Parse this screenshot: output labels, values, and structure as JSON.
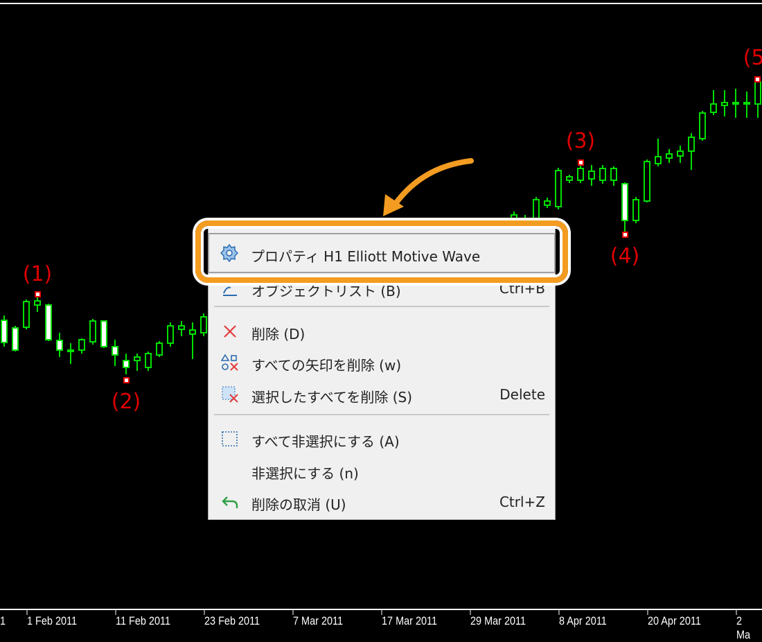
{
  "colors": {
    "candle_outline": "#00e000",
    "candle_body": "#ffffff",
    "wave_marker": "#e00000",
    "highlight": "#f39c21"
  },
  "candles": [
    {
      "o": 538,
      "c": 506,
      "h": 545,
      "l": 500
    },
    {
      "o": 527,
      "c": 495,
      "h": 530,
      "l": 493
    },
    {
      "o": 528,
      "c": 565,
      "h": 568,
      "l": 525
    },
    {
      "o": 560,
      "c": 566,
      "h": 575,
      "l": 550
    },
    {
      "o": 560,
      "c": 510,
      "h": 562,
      "l": 508
    },
    {
      "o": 509,
      "c": 495,
      "h": 520,
      "l": 485
    },
    {
      "o": 495,
      "c": 493,
      "h": 505,
      "l": 475
    },
    {
      "o": 495,
      "c": 510,
      "h": 512,
      "l": 490
    },
    {
      "o": 507,
      "c": 537,
      "h": 540,
      "l": 503
    },
    {
      "o": 537,
      "c": 500,
      "h": 538,
      "l": 498
    },
    {
      "o": 500,
      "c": 488,
      "h": 510,
      "l": 472
    },
    {
      "o": 480,
      "c": 470,
      "h": 490,
      "l": 460
    },
    {
      "o": 480,
      "c": 485,
      "h": 490,
      "l": 465
    },
    {
      "o": 470,
      "c": 490,
      "h": 493,
      "l": 465
    },
    {
      "o": 488,
      "c": 505,
      "h": 508,
      "l": 485
    },
    {
      "o": 505,
      "c": 530,
      "h": 535,
      "l": 500
    },
    {
      "o": 525,
      "c": 530,
      "h": 537,
      "l": 515
    },
    {
      "o": 518,
      "c": 524,
      "h": 535,
      "l": 482
    },
    {
      "o": 520,
      "c": 543,
      "h": 548,
      "l": 515
    }
  ],
  "candles_right": [
    {
      "o": 675,
      "c": 690,
      "h": 695,
      "l": 670
    },
    {
      "o": 675,
      "c": 685,
      "h": 690,
      "l": 672
    },
    {
      "o": 680,
      "c": 712,
      "h": 716,
      "l": 676
    },
    {
      "o": 704,
      "c": 710,
      "h": 715,
      "l": 700
    },
    {
      "o": 702,
      "c": 754,
      "h": 758,
      "l": 698
    },
    {
      "o": 740,
      "c": 745,
      "h": 748,
      "l": 736
    },
    {
      "o": 740,
      "c": 757,
      "h": 766,
      "l": 736
    },
    {
      "o": 742,
      "c": 753,
      "h": 762,
      "l": 732
    },
    {
      "o": 740,
      "c": 757,
      "h": 762,
      "l": 735
    },
    {
      "o": 740,
      "c": 757,
      "h": 760,
      "l": 732
    },
    {
      "o": 735,
      "c": 682,
      "h": 737,
      "l": 662
    },
    {
      "o": 682,
      "c": 712,
      "h": 716,
      "l": 678
    },
    {
      "o": 710,
      "c": 767,
      "h": 770,
      "l": 708
    },
    {
      "o": 764,
      "c": 774,
      "h": 800,
      "l": 760
    },
    {
      "o": 772,
      "c": 778,
      "h": 785,
      "l": 765
    },
    {
      "o": 775,
      "c": 782,
      "h": 790,
      "l": 765
    },
    {
      "o": 782,
      "c": 802,
      "h": 808,
      "l": 755
    },
    {
      "o": 800,
      "c": 837,
      "h": 840,
      "l": 797
    },
    {
      "o": 838,
      "c": 850,
      "h": 870,
      "l": 834
    },
    {
      "o": 848,
      "c": 852,
      "h": 870,
      "l": 832
    },
    {
      "o": 850,
      "c": 852,
      "h": 872,
      "l": 830
    },
    {
      "o": 850,
      "c": 852,
      "h": 868,
      "l": 830
    },
    {
      "o": 850,
      "c": 882,
      "h": 886,
      "l": 830
    }
  ],
  "wave_labels": [
    "(1)",
    "(2)",
    "(3)",
    "(4)",
    "(5)"
  ],
  "time_axis": [
    "1",
    "1 Feb 2011",
    "11 Feb 2011",
    "23 Feb 2011",
    "7 Mar 2011",
    "17 Mar 2011",
    "29 Mar 2011",
    "8 Apr 2011",
    "20 Apr 2011",
    "2 Ma"
  ],
  "menu": {
    "properties": {
      "label": "プロパティ H1 Elliott Motive Wave",
      "icon": "gear-icon"
    },
    "items": [
      {
        "label": "オブジェクトリスト (B)",
        "shortcut": "Ctrl+B",
        "icon": "object-list-icon"
      },
      {
        "label": "削除 (D)",
        "shortcut": "",
        "icon": "close-icon"
      },
      {
        "label": "すべての矢印を削除 (w)",
        "shortcut": "",
        "icon": "delete-arrows-icon"
      },
      {
        "label": "選択したすべてを削除 (S)",
        "shortcut": "Delete",
        "icon": "delete-selected-icon"
      },
      {
        "label": "すべて非選択にする (A)",
        "shortcut": "",
        "icon": "deselect-all-icon"
      },
      {
        "label": "非選択にする (n)",
        "shortcut": "",
        "icon": ""
      },
      {
        "label": "削除の取消 (U)",
        "shortcut": "Ctrl+Z",
        "icon": "undo-icon"
      }
    ]
  }
}
